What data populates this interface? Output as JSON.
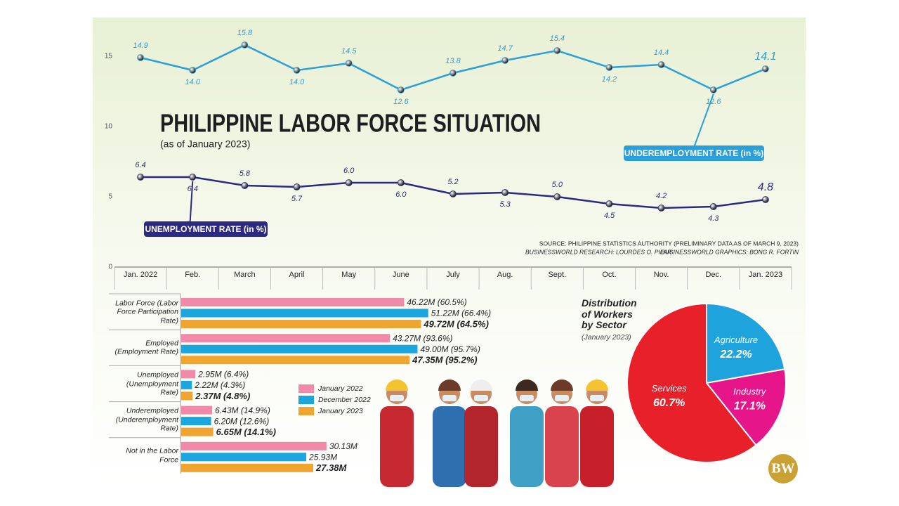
{
  "chart_data": [
    {
      "type": "line",
      "title": "PHILIPPINE LABOR FORCE SITUATION",
      "subtitle": "(as of January 2023)",
      "categories": [
        "Jan. 2022",
        "Feb.",
        "March",
        "April",
        "May",
        "June",
        "July",
        "Aug.",
        "Sept.",
        "Oct.",
        "Nov.",
        "Dec.",
        "Jan. 2023"
      ],
      "series": [
        {
          "name": "UNDEREMPLOYMENT RATE (in %)",
          "color": "#2a9fd8",
          "values": [
            14.9,
            14.0,
            15.8,
            14.0,
            14.5,
            12.6,
            13.8,
            14.7,
            15.4,
            14.2,
            14.4,
            12.6,
            14.1
          ],
          "value_labels": [
            "14.9",
            "14.0",
            "15.8",
            "14.0",
            "14.5",
            "12.6",
            "13.8",
            "14.7",
            "15.4",
            "14.2",
            "14.4",
            "12.6",
            "14.1"
          ]
        },
        {
          "name": "UNEMPLOYMENT RATE (in %)",
          "color": "#2b2a80",
          "values": [
            6.4,
            6.4,
            5.8,
            5.7,
            6.0,
            6.0,
            5.2,
            5.3,
            5.0,
            4.5,
            4.2,
            4.3,
            4.8
          ],
          "value_labels": [
            "6.4",
            "6.4",
            "5.8",
            "5.7",
            "6.0",
            "6.0",
            "5.2",
            "5.3",
            "5.0",
            "4.5",
            "4.2",
            "4.3",
            "4.8"
          ]
        }
      ],
      "ylim": [
        0,
        18
      ],
      "yticks": [
        0,
        5,
        10,
        15
      ],
      "grid": false,
      "source": "SOURCE: PHILIPPINE STATISTICS AUTHORITY (PRELIMINARY DATA AS OF MARCH 9, 2023)",
      "credits": [
        "BUSINESSWORLD RESEARCH: LOURDES O. PILAR",
        "BUSINESSWORLD GRAPHICS: BONG R. FORTIN"
      ]
    },
    {
      "type": "hbar",
      "categories": [
        "Labor Force (Labor Force Participation Rate)",
        "Employed (Employment Rate)",
        "Unemployed (Unemployment Rate)",
        "Underemployed (Underemployment Rate)",
        "Not in the Labor Force"
      ],
      "series": [
        {
          "name": "January 2022",
          "color": "#f08aa8",
          "values": [
            46.22,
            43.27,
            2.95,
            6.43,
            30.13
          ],
          "value_labels": [
            "46.22M (60.5%)",
            "43.27M (93.6%)",
            "2.95M (6.4%)",
            "6.43M (14.9%)",
            "30.13M"
          ]
        },
        {
          "name": "December 2022",
          "color": "#1ba6de",
          "values": [
            51.22,
            49.0,
            2.22,
            6.2,
            25.93
          ],
          "value_labels": [
            "51.22M (66.4%)",
            "49.00M (95.7%)",
            "2.22M (4.3%)",
            "6.20M (12.6%)",
            "25.93M"
          ]
        },
        {
          "name": "January 2023",
          "color": "#f0a530",
          "values": [
            49.72,
            47.35,
            2.37,
            6.65,
            27.38
          ],
          "value_labels": [
            "49.72M (64.5%)",
            "47.35M (95.2%)",
            "2.37M (4.8%)",
            "6.65M (14.1%)",
            "27.38M"
          ]
        }
      ],
      "xlim": [
        0,
        60
      ]
    },
    {
      "type": "pie",
      "title": "Distribution of Workers by Sector",
      "subtitle": "(January 2023)",
      "categories": [
        "Agriculture",
        "Industry",
        "Services"
      ],
      "values": [
        22.2,
        17.1,
        60.7
      ],
      "value_labels": [
        "22.2%",
        "17.1%",
        "60.7%"
      ],
      "colors": [
        "#1fa3dc",
        "#e6168a",
        "#e8202a"
      ]
    }
  ],
  "logo": "BW"
}
